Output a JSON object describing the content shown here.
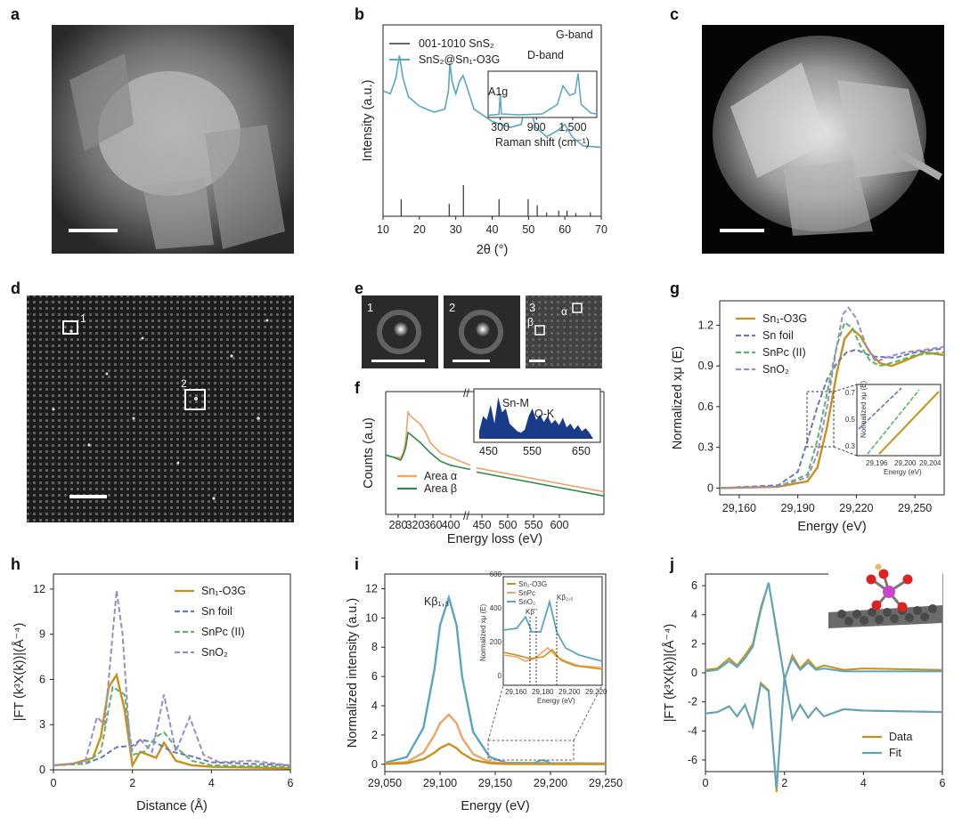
{
  "panel_labels": {
    "a": "a",
    "b": "b",
    "c": "c",
    "d": "d",
    "e": "e",
    "f": "f",
    "g": "g",
    "h": "h",
    "i": "i",
    "j": "j"
  },
  "colors": {
    "sample": "#c8921a",
    "snfoil": "#6b78b8",
    "snpc": "#5cb46a",
    "sno2": "#9a8cc6",
    "fit": "#5aa6c2",
    "area_alpha": "#f0a36a",
    "area_beta": "#2f8a4a",
    "xrd_line": "#5aa6c2",
    "raman_fill": "#1a3a8a"
  },
  "panel_e": {
    "roi_labels": [
      "1",
      "2",
      "3"
    ],
    "alpha": "α",
    "beta": "β"
  },
  "panel_d": {
    "box_labels": [
      "1",
      "2"
    ]
  },
  "chart_data": [
    {
      "id": "b",
      "type": "line",
      "xlabel": "2θ (°)",
      "ylabel": "Intensity (a.u.)",
      "xticks": [
        "10",
        "20",
        "30",
        "40",
        "50",
        "60",
        "70"
      ],
      "xlim": [
        10,
        70
      ],
      "legend": [
        "001-1010 SnS₂",
        "SnS₂@Sn₁-O3G"
      ],
      "reference_peaks_2theta": [
        15.0,
        28.2,
        32.1,
        41.9,
        49.9,
        52.4,
        55.0,
        58.3,
        60.6,
        63.0,
        67.0
      ],
      "reference_heights": [
        0.55,
        0.4,
        1.0,
        0.55,
        0.55,
        0.35,
        0.12,
        0.18,
        0.18,
        0.1,
        0.12
      ],
      "series": [
        {
          "name": "SnS₂@Sn₁-O3G",
          "x": [
            10,
            12,
            13.5,
            14.5,
            15.5,
            17,
            20,
            24,
            27,
            28,
            28.4,
            29,
            30,
            31,
            32,
            33,
            35,
            40,
            45,
            48,
            49.5,
            50.5,
            52,
            55,
            58,
            60,
            62,
            65,
            70
          ],
          "y": [
            0.82,
            0.8,
            0.9,
            1.05,
            0.9,
            0.78,
            0.72,
            0.68,
            0.7,
            0.82,
            1.0,
            0.88,
            0.8,
            0.88,
            0.92,
            0.85,
            0.7,
            0.62,
            0.58,
            0.6,
            0.78,
            0.7,
            0.58,
            0.52,
            0.56,
            0.6,
            0.52,
            0.46,
            0.45
          ]
        }
      ],
      "inset": {
        "xlabel": "Raman shift (cm⁻¹)",
        "xticks": [
          "300",
          "900",
          "1,500"
        ],
        "xlim": [
          100,
          1900
        ],
        "annotations": [
          "A1g",
          "D-band",
          "G-band"
        ],
        "x": [
          100,
          280,
          300,
          320,
          600,
          1000,
          1250,
          1340,
          1450,
          1540,
          1590,
          1640,
          1800,
          1900
        ],
        "y": [
          0.05,
          0.07,
          0.55,
          0.08,
          0.06,
          0.08,
          0.3,
          0.72,
          0.5,
          0.55,
          1.0,
          0.3,
          0.1,
          0.08
        ]
      }
    },
    {
      "id": "f",
      "type": "line",
      "xlabel": "Energy loss (eV)",
      "ylabel": "Counts (a.u)",
      "xticks": [
        "280",
        "320",
        "360",
        "400",
        "450",
        "500",
        "550",
        "600"
      ],
      "legend": [
        "Area α",
        "Area β"
      ],
      "series": [
        {
          "name": "Area α",
          "x": [
            250,
            265,
            280,
            285,
            290,
            295,
            300,
            310,
            320,
            330,
            340,
            350,
            360,
            380,
            400,
            410,
            420
          ],
          "y": [
            0.58,
            0.56,
            0.55,
            0.6,
            0.72,
            1.0,
            0.96,
            0.92,
            0.88,
            0.8,
            0.7,
            0.65,
            0.6,
            0.56,
            0.52,
            0.5,
            0.48
          ]
        },
        {
          "name": "Area β",
          "x": [
            250,
            265,
            280,
            285,
            290,
            295,
            300,
            310,
            320,
            330,
            340,
            350,
            360,
            380,
            400,
            410,
            420
          ],
          "y": [
            0.58,
            0.56,
            0.53,
            0.58,
            0.65,
            0.8,
            0.78,
            0.74,
            0.7,
            0.65,
            0.6,
            0.56,
            0.52,
            0.48,
            0.46,
            0.45,
            0.44
          ]
        }
      ],
      "inset": {
        "xticks": [
          "450",
          "550",
          "650"
        ],
        "annotations": [
          "Sn-M",
          "O-K"
        ]
      }
    },
    {
      "id": "g",
      "type": "line",
      "xlabel": "Energy (eV)",
      "ylabel": "Normalized xμ (E)",
      "xticks": [
        "29,160",
        "29,190",
        "29,220",
        "29,250"
      ],
      "yticks": [
        "0",
        "0.3",
        "0.6",
        "0.9",
        "1.2"
      ],
      "xlim": [
        29150,
        29265
      ],
      "ylim": [
        -0.05,
        1.38
      ],
      "legend": [
        "Sn₁-O3G",
        "Sn foil",
        "SnPc (II)",
        "SnO₂"
      ],
      "series": [
        {
          "name": "Sn₁-O3G",
          "x": [
            29150,
            29180,
            29195,
            29200,
            29205,
            29210,
            29214,
            29218,
            29222,
            29227,
            29232,
            29238,
            29245,
            29255,
            29265
          ],
          "y": [
            0,
            0.01,
            0.05,
            0.15,
            0.45,
            0.85,
            1.1,
            1.17,
            1.12,
            1.0,
            0.92,
            0.9,
            0.94,
            1.0,
            0.98
          ]
        },
        {
          "name": "Sn foil",
          "x": [
            29150,
            29180,
            29190,
            29195,
            29200,
            29205,
            29210,
            29215,
            29220,
            29228,
            29240,
            29250,
            29265
          ],
          "y": [
            0,
            0.02,
            0.12,
            0.35,
            0.6,
            0.8,
            0.92,
            1.0,
            1.02,
            0.97,
            0.96,
            1.0,
            1.03
          ]
        },
        {
          "name": "SnPc (II)",
          "x": [
            29150,
            29180,
            29195,
            29200,
            29205,
            29210,
            29214,
            29218,
            29222,
            29227,
            29232,
            29240,
            29250,
            29265
          ],
          "y": [
            0,
            0.01,
            0.1,
            0.35,
            0.7,
            1.05,
            1.22,
            1.18,
            1.05,
            0.94,
            0.9,
            0.93,
            0.98,
            1.0
          ]
        },
        {
          "name": "SnO₂",
          "x": [
            29150,
            29180,
            29195,
            29200,
            29205,
            29210,
            29213,
            29216,
            29220,
            29225,
            29230,
            29237,
            29245,
            29255,
            29265
          ],
          "y": [
            0,
            0.01,
            0.08,
            0.25,
            0.6,
            1.05,
            1.28,
            1.33,
            1.25,
            1.05,
            0.93,
            0.97,
            1.0,
            1.02,
            1.04
          ]
        }
      ],
      "inset": {
        "xlabel": "Energy (eV)",
        "ylabel": "Normalized xμ (E)",
        "xticks": [
          "29,196",
          "29,200",
          "29,204"
        ],
        "yticks": [
          "0.3",
          "0.5",
          "0.7"
        ]
      }
    },
    {
      "id": "h",
      "type": "line",
      "xlabel": "Distance (Å)",
      "ylabel": "|FT (k³X(k))|(Å⁻⁴)",
      "xticks": [
        "0",
        "2",
        "4",
        "6"
      ],
      "yticks": [
        "0",
        "3",
        "6",
        "9",
        "12"
      ],
      "xlim": [
        0,
        6
      ],
      "ylim": [
        0,
        13
      ],
      "legend": [
        "Sn₁-O3G",
        "Sn foil",
        "SnPc (II)",
        "SnO₂"
      ],
      "series": [
        {
          "name": "Sn₁-O3G",
          "x": [
            0,
            0.5,
            1.0,
            1.2,
            1.4,
            1.6,
            1.8,
            2.0,
            2.2,
            2.6,
            2.8,
            3.1,
            3.5,
            4,
            6
          ],
          "y": [
            0.3,
            0.4,
            0.8,
            2.2,
            5.5,
            6.3,
            4.0,
            0.3,
            1.2,
            0.8,
            1.8,
            0.6,
            0.3,
            0.2,
            0.1
          ]
        },
        {
          "name": "Sn foil",
          "x": [
            0,
            0.8,
            1.2,
            1.6,
            2.0,
            2.2,
            2.6,
            2.8,
            3.0,
            3.5,
            4,
            5,
            6
          ],
          "y": [
            0.3,
            0.4,
            0.8,
            1.5,
            1.6,
            2.0,
            1.8,
            1.5,
            1.2,
            0.9,
            0.5,
            0.4,
            0.3
          ]
        },
        {
          "name": "SnPc (II)",
          "x": [
            0,
            0.8,
            1.2,
            1.5,
            1.8,
            2.0,
            2.3,
            2.6,
            2.8,
            3.1,
            3.5,
            4,
            6
          ],
          "y": [
            0.3,
            0.4,
            1.2,
            5.5,
            5.0,
            1.0,
            1.2,
            2.2,
            2.5,
            1.5,
            0.6,
            0.3,
            0.2
          ]
        },
        {
          "name": "SnO₂",
          "x": [
            0,
            0.8,
            1.1,
            1.3,
            1.5,
            1.6,
            1.75,
            1.95,
            2.2,
            2.5,
            2.8,
            3.1,
            3.45,
            3.8,
            4.2,
            5,
            6
          ],
          "y": [
            0.3,
            0.5,
            3.5,
            3.0,
            9.0,
            11.9,
            9.0,
            1.2,
            2.0,
            1.2,
            5.0,
            1.2,
            3.5,
            1.0,
            0.5,
            0.6,
            0.3
          ]
        }
      ]
    },
    {
      "id": "i",
      "type": "line",
      "xlabel": "Energy (eV)",
      "ylabel": "Normalized intensity (a.u.)",
      "xticks": [
        "29,050",
        "29,100",
        "29,150",
        "29,200",
        "29,250"
      ],
      "yticks": [
        "0",
        "2",
        "4",
        "6",
        "8",
        "10",
        "12"
      ],
      "xlim": [
        29050,
        29250
      ],
      "ylim": [
        -0.5,
        13
      ],
      "annotations": [
        "Kβ₁,₃"
      ],
      "series": [
        {
          "name": "SnO₂",
          "x": [
            29050,
            29070,
            29085,
            29095,
            29100,
            29108,
            29115,
            29120,
            29130,
            29145,
            29160,
            29250
          ],
          "y": [
            0.1,
            0.5,
            2.5,
            6.5,
            9.5,
            11.4,
            9.5,
            6.0,
            2.2,
            0.5,
            0.1,
            0.05
          ]
        },
        {
          "name": "SnPc",
          "x": [
            29050,
            29070,
            29085,
            29095,
            29100,
            29108,
            29115,
            29120,
            29130,
            29145,
            29160,
            29250
          ],
          "y": [
            0.05,
            0.15,
            0.8,
            2.0,
            2.8,
            3.4,
            2.8,
            1.8,
            0.7,
            0.15,
            0.05,
            0.03
          ]
        },
        {
          "name": "Sn₁-O3G",
          "x": [
            29050,
            29070,
            29085,
            29095,
            29100,
            29108,
            29115,
            29120,
            29130,
            29145,
            29160,
            29250
          ],
          "y": [
            0.02,
            0.08,
            0.35,
            0.8,
            1.1,
            1.4,
            1.1,
            0.75,
            0.3,
            0.08,
            0.02,
            0.01
          ]
        }
      ],
      "inset": {
        "xlabel": "Energy (eV)",
        "ylabel": "Normalized xμ (E)",
        "xticks": [
          "29,160",
          "29,180",
          "29,200",
          "29,220"
        ],
        "yticks": [
          "0",
          "200",
          "400",
          "600"
        ],
        "legend": [
          "Sn₁-O3G",
          "SnPc",
          "SnO₂"
        ],
        "annotations": [
          "Kβ''",
          "Kβ₂,₅"
        ]
      }
    },
    {
      "id": "j",
      "type": "line",
      "xlabel": "",
      "ylabel": "|FT (k³X(k))|(Å⁻⁴)",
      "xticks": [
        "0",
        "2",
        "4",
        "6"
      ],
      "yticks": [
        "-6",
        "-4",
        "-2",
        "0",
        "2",
        "4",
        "6"
      ],
      "xlim": [
        0,
        6
      ],
      "ylim": [
        -6.8,
        6.8
      ],
      "legend": [
        "Data",
        "Fit"
      ],
      "series": [
        {
          "name": "Data",
          "x": [
            0,
            0.3,
            0.6,
            0.8,
            1.0,
            1.2,
            1.4,
            1.6,
            1.8,
            2.0,
            2.2,
            2.4,
            2.6,
            2.8,
            3.0,
            3.5,
            4,
            6
          ],
          "y": [
            0.2,
            0.3,
            1.0,
            0.5,
            1.2,
            2.0,
            4.5,
            6.2,
            3.0,
            -0.5,
            1.2,
            0.3,
            0.9,
            0.3,
            0.5,
            0.2,
            0.3,
            0.2
          ]
        },
        {
          "name": "Fit",
          "x": [
            0,
            0.3,
            0.6,
            0.8,
            1.0,
            1.2,
            1.4,
            1.6,
            1.8,
            2.0,
            2.2,
            2.4,
            2.6,
            2.8,
            3.0,
            3.5,
            4,
            6
          ],
          "y": [
            0.1,
            0.2,
            0.8,
            0.4,
            1.0,
            1.8,
            4.3,
            6.2,
            2.8,
            -0.4,
            1.0,
            0.2,
            0.7,
            0.2,
            0.3,
            0.1,
            0.1,
            0.1
          ]
        }
      ]
    }
  ],
  "scale_bars": [
    "",
    "",
    "",
    ""
  ],
  "inset_j_caption": ""
}
